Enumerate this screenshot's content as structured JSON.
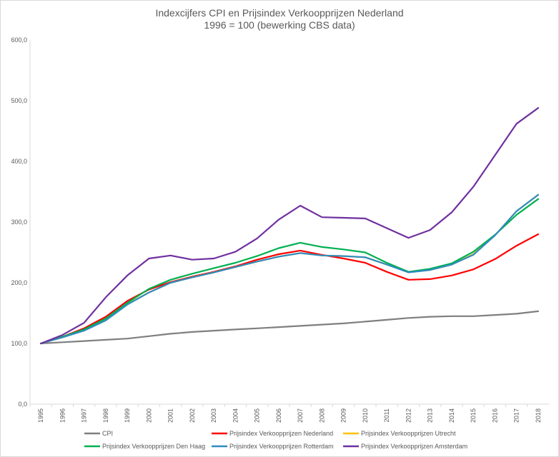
{
  "chart_data": {
    "type": "line",
    "title": "Indexcijfers CPI en Prijsindex Verkoopprijzen Nederland",
    "subtitle": "1996 = 100 (bewerking CBS data)",
    "xlabel": "",
    "ylabel": "",
    "ylim": [
      0,
      600
    ],
    "yticks": [
      "0,0",
      "100,0",
      "200,0",
      "300,0",
      "400,0",
      "500,0",
      "600,0"
    ],
    "grid": false,
    "legend_position": "bottom",
    "categories": [
      "1995",
      "1996",
      "1997",
      "1998",
      "1999",
      "2000",
      "2001",
      "2002",
      "2003",
      "2004",
      "2005",
      "2006",
      "2007",
      "2008",
      "2009",
      "2010",
      "2011",
      "2012",
      "2013",
      "2014",
      "2015",
      "2016",
      "2017",
      "2018"
    ],
    "series": [
      {
        "name": "CPI",
        "color": "#7f7f7f",
        "values": [
          100,
          102,
          104,
          106,
          108,
          112,
          116,
          119,
          121,
          123,
          125,
          127,
          129,
          131,
          133,
          136,
          139,
          142,
          144,
          145,
          145,
          147,
          149,
          153
        ]
      },
      {
        "name": "Prijsindex Verkoopprijzen Nederland",
        "color": "#ff0000",
        "values": [
          100,
          111,
          125,
          144,
          170,
          189,
          201,
          210,
          218,
          227,
          238,
          247,
          253,
          246,
          240,
          233,
          218,
          205,
          206,
          212,
          222,
          239,
          261,
          280
        ]
      },
      {
        "name": "Prijsindex Verkoopprijzen Utrecht",
        "color": "#ffc000",
        "values": [
          100,
          110,
          122,
          140,
          165,
          184,
          200,
          209,
          217,
          226,
          235,
          243,
          249,
          245,
          244,
          242,
          230,
          218,
          221,
          230,
          247,
          278,
          318,
          345
        ]
      },
      {
        "name": "Prijsindex Verkoopprijzen Den Haag",
        "color": "#00b050",
        "values": [
          100,
          111,
          123,
          141,
          167,
          190,
          205,
          215,
          224,
          233,
          244,
          257,
          266,
          259,
          255,
          250,
          233,
          218,
          223,
          232,
          251,
          279,
          312,
          338
        ]
      },
      {
        "name": "Prijsindex Verkoopprijzen Rotterdam",
        "color": "#2e8bc0",
        "values": [
          100,
          110,
          121,
          138,
          164,
          184,
          200,
          209,
          217,
          226,
          235,
          243,
          249,
          245,
          244,
          242,
          230,
          217,
          221,
          230,
          246,
          278,
          318,
          345
        ]
      },
      {
        "name": "Prijsindex Verkoopprijzen Amsterdam",
        "color": "#7030a0",
        "values": [
          100,
          114,
          134,
          176,
          212,
          240,
          245,
          238,
          240,
          251,
          273,
          304,
          327,
          308,
          307,
          306,
          290,
          274,
          287,
          316,
          358,
          410,
          462,
          488
        ]
      }
    ]
  }
}
